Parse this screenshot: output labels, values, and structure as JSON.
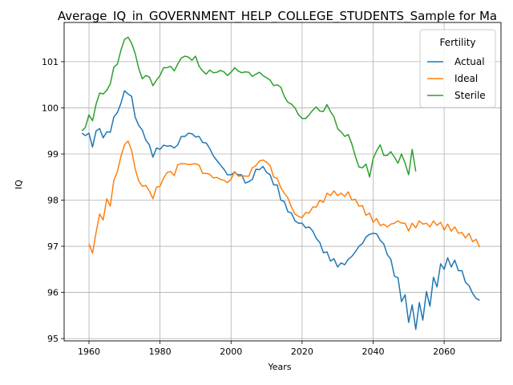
{
  "chart_data": {
    "type": "line",
    "title": "Average_IQ_in_GOVERNMENT_HELP_COLLEGE_STUDENTS_Sample for Ma",
    "xlabel": "Years",
    "ylabel": "IQ",
    "xlim": [
      1953,
      2076
    ],
    "ylim": [
      94.95,
      101.85
    ],
    "x_ticks": [
      1960,
      1980,
      2000,
      2020,
      2040,
      2060
    ],
    "y_ticks": [
      95,
      96,
      97,
      98,
      99,
      100,
      101
    ],
    "grid": true,
    "legend": {
      "title": "Fertility",
      "position": "top-right"
    },
    "series": [
      {
        "name": "Actual",
        "color": "#1f77b4",
        "x": [
          1958,
          1959,
          1960,
          1961,
          1962,
          1963,
          1964,
          1965,
          1966,
          1967,
          1968,
          1969,
          1970,
          1971,
          1972,
          1973,
          1974,
          1975,
          1976,
          1977,
          1978,
          1979,
          1980,
          1981,
          1982,
          1983,
          1984,
          1985,
          1986,
          1987,
          1988,
          1989,
          1990,
          1991,
          1992,
          1993,
          1994,
          1995,
          1996,
          1997,
          1998,
          1999,
          2000,
          2001,
          2002,
          2003,
          2004,
          2005,
          2006,
          2007,
          2008,
          2009,
          2010,
          2011,
          2012,
          2013,
          2014,
          2015,
          2016,
          2017,
          2018,
          2019,
          2020,
          2021,
          2022,
          2023,
          2024,
          2025,
          2026,
          2027,
          2028,
          2029,
          2030,
          2031,
          2032,
          2033,
          2034,
          2035,
          2036,
          2037,
          2038,
          2039,
          2040,
          2041,
          2042,
          2043,
          2044,
          2045,
          2046,
          2047,
          2048,
          2049,
          2050,
          2051,
          2052,
          2053,
          2054,
          2055,
          2056,
          2057,
          2058,
          2059,
          2060,
          2061,
          2062,
          2063,
          2064,
          2065,
          2066,
          2067,
          2068,
          2069,
          2070
        ],
        "values": [
          99.45,
          99.4,
          99.45,
          99.15,
          99.5,
          99.55,
          99.35,
          99.48,
          99.47,
          99.8,
          99.9,
          100.1,
          100.37,
          100.3,
          100.25,
          99.8,
          99.62,
          99.52,
          99.3,
          99.2,
          98.93,
          99.13,
          99.1,
          99.19,
          99.17,
          99.18,
          99.13,
          99.2,
          99.38,
          99.38,
          99.45,
          99.44,
          99.37,
          99.38,
          99.25,
          99.24,
          99.12,
          98.96,
          98.86,
          98.76,
          98.67,
          98.55,
          98.55,
          98.6,
          98.55,
          98.55,
          98.37,
          98.4,
          98.45,
          98.67,
          98.66,
          98.73,
          98.6,
          98.55,
          98.33,
          98.33,
          98.0,
          97.97,
          97.75,
          97.72,
          97.55,
          97.5,
          97.5,
          97.4,
          97.42,
          97.33,
          97.17,
          97.08,
          96.86,
          96.88,
          96.68,
          96.73,
          96.55,
          96.64,
          96.6,
          96.72,
          96.78,
          96.88,
          97.0,
          97.06,
          97.2,
          97.26,
          97.28,
          97.27,
          97.13,
          97.05,
          96.82,
          96.72,
          96.35,
          96.32,
          95.8,
          95.95,
          95.35,
          95.73,
          95.2,
          95.78,
          95.4,
          96.02,
          95.7,
          96.33,
          96.12,
          96.62,
          96.5,
          96.75,
          96.55,
          96.7,
          96.47,
          96.47,
          96.22,
          96.15,
          95.98,
          95.87,
          95.83
        ]
      },
      {
        "name": "Ideal",
        "color": "#ff7f0e",
        "x": [
          1960,
          1961,
          1962,
          1963,
          1964,
          1965,
          1966,
          1967,
          1968,
          1969,
          1970,
          1971,
          1972,
          1973,
          1974,
          1975,
          1976,
          1977,
          1978,
          1979,
          1980,
          1981,
          1982,
          1983,
          1984,
          1985,
          1986,
          1987,
          1988,
          1989,
          1990,
          1991,
          1992,
          1993,
          1994,
          1995,
          1996,
          1997,
          1998,
          1999,
          2000,
          2001,
          2002,
          2003,
          2004,
          2005,
          2006,
          2007,
          2008,
          2009,
          2010,
          2011,
          2012,
          2013,
          2014,
          2015,
          2016,
          2017,
          2018,
          2019,
          2020,
          2021,
          2022,
          2023,
          2024,
          2025,
          2026,
          2027,
          2028,
          2029,
          2030,
          2031,
          2032,
          2033,
          2034,
          2035,
          2036,
          2037,
          2038,
          2039,
          2040,
          2041,
          2042,
          2043,
          2044,
          2045,
          2046,
          2047,
          2048,
          2049,
          2050,
          2051,
          2052,
          2053,
          2054,
          2055,
          2056,
          2057,
          2058,
          2059,
          2060,
          2061,
          2062,
          2063,
          2064,
          2065,
          2066,
          2067,
          2068,
          2069,
          2070
        ],
        "values": [
          97.05,
          96.85,
          97.3,
          97.7,
          97.57,
          98.03,
          97.87,
          98.43,
          98.62,
          98.95,
          99.2,
          99.28,
          99.08,
          98.68,
          98.42,
          98.3,
          98.32,
          98.2,
          98.03,
          98.28,
          98.3,
          98.48,
          98.6,
          98.62,
          98.53,
          98.77,
          98.79,
          98.79,
          98.77,
          98.78,
          98.79,
          98.76,
          98.58,
          98.58,
          98.56,
          98.48,
          98.49,
          98.45,
          98.43,
          98.38,
          98.45,
          98.62,
          98.52,
          98.53,
          98.52,
          98.52,
          98.7,
          98.75,
          98.85,
          98.87,
          98.82,
          98.75,
          98.5,
          98.47,
          98.27,
          98.15,
          98.05,
          97.85,
          97.7,
          97.65,
          97.62,
          97.73,
          97.72,
          97.85,
          97.85,
          98.0,
          97.95,
          98.15,
          98.1,
          98.2,
          98.1,
          98.15,
          98.08,
          98.18,
          98.0,
          98.02,
          97.87,
          97.88,
          97.67,
          97.72,
          97.52,
          97.6,
          97.45,
          97.48,
          97.42,
          97.48,
          97.5,
          97.55,
          97.5,
          97.5,
          97.33,
          97.5,
          97.4,
          97.55,
          97.48,
          97.5,
          97.42,
          97.55,
          97.45,
          97.52,
          97.35,
          97.48,
          97.33,
          97.42,
          97.28,
          97.3,
          97.18,
          97.28,
          97.1,
          97.15,
          96.98
        ]
      },
      {
        "name": "Sterile",
        "color": "#2ca02c",
        "x": [
          1958,
          1959,
          1960,
          1961,
          1962,
          1963,
          1964,
          1965,
          1966,
          1967,
          1968,
          1969,
          1970,
          1971,
          1972,
          1973,
          1974,
          1975,
          1976,
          1977,
          1978,
          1979,
          1980,
          1981,
          1982,
          1983,
          1984,
          1985,
          1986,
          1987,
          1988,
          1989,
          1990,
          1991,
          1992,
          1993,
          1994,
          1995,
          1996,
          1997,
          1998,
          1999,
          2000,
          2001,
          2002,
          2003,
          2004,
          2005,
          2006,
          2007,
          2008,
          2009,
          2010,
          2011,
          2012,
          2013,
          2014,
          2015,
          2016,
          2017,
          2018,
          2019,
          2020,
          2021,
          2022,
          2023,
          2024,
          2025,
          2026,
          2027,
          2028,
          2029,
          2030,
          2031,
          2032,
          2033,
          2034,
          2035,
          2036,
          2037,
          2038,
          2039,
          2040,
          2041,
          2042,
          2043,
          2044,
          2045,
          2046,
          2047,
          2048,
          2049,
          2050,
          2051,
          2052
        ],
        "values": [
          99.5,
          99.58,
          99.85,
          99.72,
          100.08,
          100.32,
          100.3,
          100.38,
          100.52,
          100.88,
          100.95,
          101.25,
          101.48,
          101.53,
          101.4,
          101.18,
          100.86,
          100.63,
          100.7,
          100.67,
          100.48,
          100.6,
          100.7,
          100.87,
          100.87,
          100.9,
          100.8,
          100.95,
          101.08,
          101.12,
          101.1,
          101.03,
          101.12,
          100.9,
          100.8,
          100.73,
          100.82,
          100.76,
          100.77,
          100.81,
          100.78,
          100.7,
          100.77,
          100.87,
          100.8,
          100.76,
          100.78,
          100.77,
          100.68,
          100.73,
          100.77,
          100.7,
          100.65,
          100.6,
          100.48,
          100.5,
          100.45,
          100.25,
          100.12,
          100.08,
          100.0,
          99.85,
          99.77,
          99.77,
          99.85,
          99.95,
          100.02,
          99.93,
          99.92,
          100.07,
          99.92,
          99.8,
          99.55,
          99.48,
          99.38,
          99.42,
          99.22,
          98.95,
          98.72,
          98.7,
          98.78,
          98.5,
          98.9,
          99.07,
          99.2,
          98.97,
          98.97,
          99.05,
          98.93,
          98.8,
          99.0,
          98.8,
          98.55,
          99.1,
          98.62
        ]
      }
    ]
  }
}
